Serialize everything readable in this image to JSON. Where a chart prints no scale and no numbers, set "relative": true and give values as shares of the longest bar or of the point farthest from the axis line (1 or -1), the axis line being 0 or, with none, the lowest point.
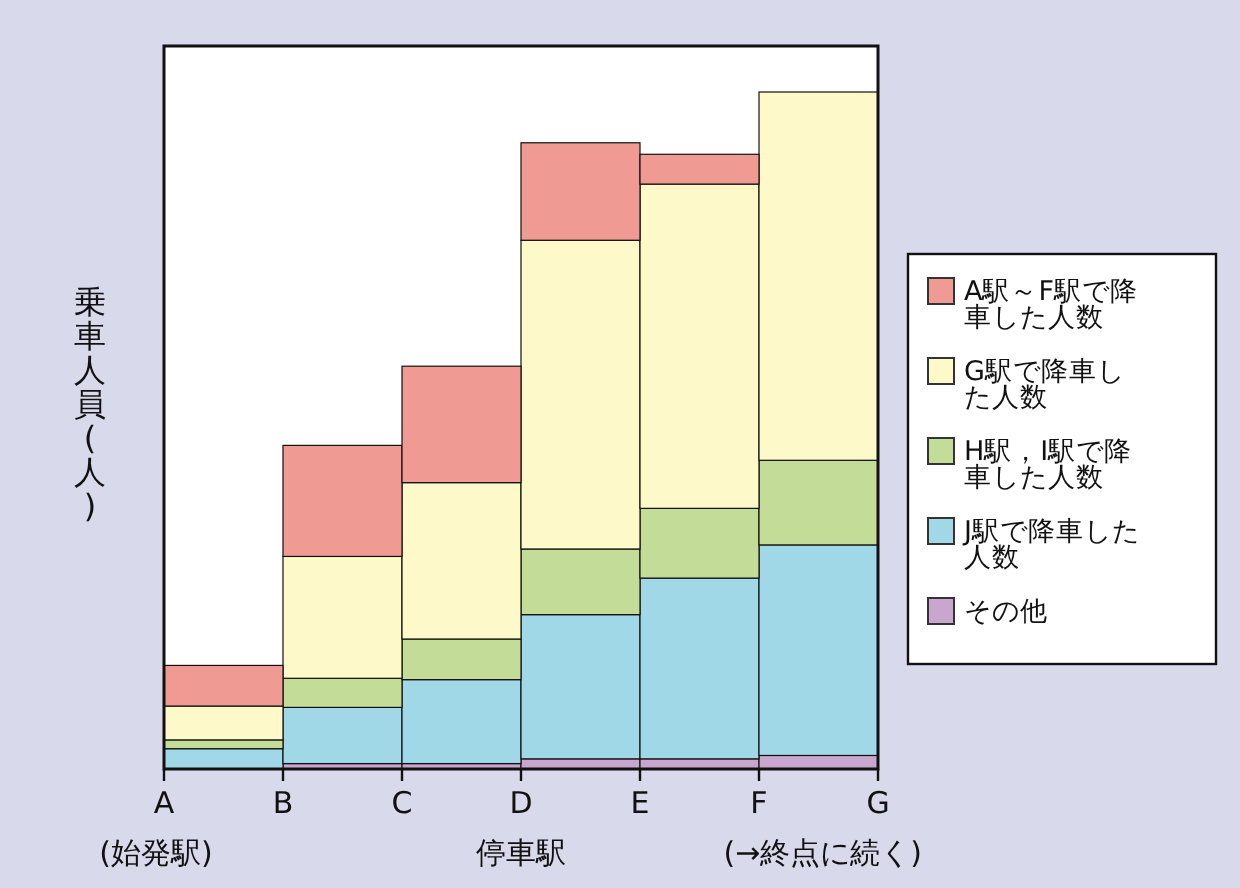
{
  "chart_data": {
    "type": "bar",
    "stacked": true,
    "relative": true,
    "xlabel": "停車駅",
    "ylabel": "乗車人員(人)",
    "categories": [
      null,
      null,
      null,
      null,
      null,
      null
    ],
    "annotations": [
      "A",
      "B",
      "C",
      "D",
      "E",
      "F",
      "G",
      "(始発駅)",
      "(→終点に続く)"
    ],
    "legend": "right",
    "grid": false,
    "series": [
      {
        "name": "その他",
        "color": "#c8a6cd",
        "values": [
          0,
          0.008,
          0.008,
          0.015,
          0.015,
          0.02
        ]
      },
      {
        "name": "J駅で降車した人数",
        "color": "#a1d8e8",
        "values": [
          0.03,
          0.083,
          0.124,
          0.213,
          0.267,
          0.311
        ]
      },
      {
        "name": "H駅，I駅で降車した人数",
        "color": "#c3dc97",
        "values": [
          0.013,
          0.043,
          0.06,
          0.097,
          0.103,
          0.125
        ]
      },
      {
        "name": "G駅で降車した人数",
        "color": "#fdf9c8",
        "values": [
          0.05,
          0.18,
          0.231,
          0.456,
          0.479,
          0.544
        ]
      },
      {
        "name": "A駅～F駅で降車した人数",
        "color": "#f09a94",
        "values": [
          0.06,
          0.164,
          0.172,
          0.144,
          0.044,
          0
        ]
      }
    ]
  }
}
